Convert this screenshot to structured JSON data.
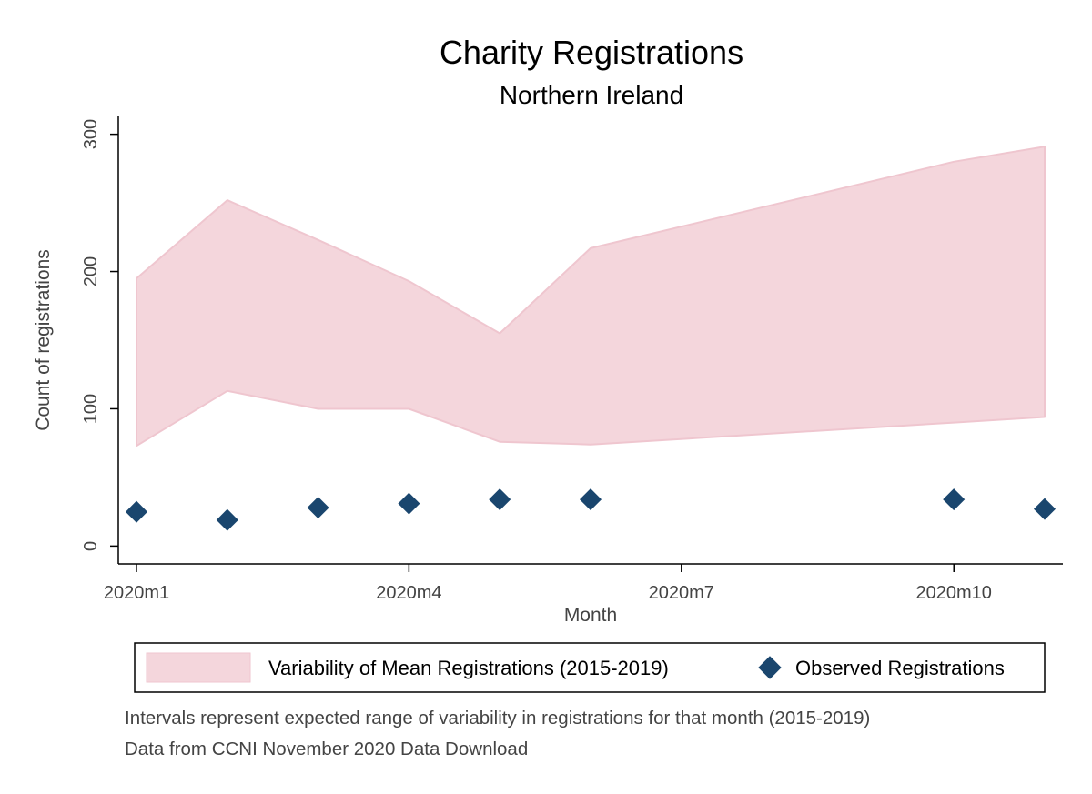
{
  "colors": {
    "band_fill": "#f4d6dc",
    "band_edge": "#efc6cf",
    "marker": "#1a466e",
    "axis": "#000000",
    "text": "#444444"
  },
  "chart_data": {
    "type": "area",
    "title": "Charity Registrations",
    "subtitle": "Northern Ireland",
    "xlabel": "Month",
    "ylabel": "Count of registrations",
    "x_ticks": [
      {
        "month": 1,
        "label": "2020m1"
      },
      {
        "month": 4,
        "label": "2020m4"
      },
      {
        "month": 7,
        "label": "2020m7"
      },
      {
        "month": 10,
        "label": "2020m10"
      }
    ],
    "y_ticks": [
      0,
      100,
      200,
      300
    ],
    "xlim": [
      0.8,
      11.2
    ],
    "ylim": [
      -13,
      313
    ],
    "grid": false,
    "legend_position": "bottom",
    "band": {
      "name": "Variability of Mean Registrations (2015-2019)",
      "points": [
        {
          "month": 1,
          "lower": 73,
          "upper": 195
        },
        {
          "month": 2,
          "lower": 113,
          "upper": 252
        },
        {
          "month": 3,
          "lower": 100,
          "upper": 223
        },
        {
          "month": 4,
          "lower": 100,
          "upper": 193
        },
        {
          "month": 5,
          "lower": 76,
          "upper": 155
        },
        {
          "month": 6,
          "lower": 74,
          "upper": 217
        },
        {
          "month": 10,
          "lower": 90,
          "upper": 280
        },
        {
          "month": 11,
          "lower": 94,
          "upper": 291
        }
      ]
    },
    "series": [
      {
        "name": "Observed Registrations",
        "marker": "diamond",
        "points": [
          {
            "month": 1,
            "value": 25
          },
          {
            "month": 2,
            "value": 19
          },
          {
            "month": 3,
            "value": 28
          },
          {
            "month": 4,
            "value": 31
          },
          {
            "month": 5,
            "value": 34
          },
          {
            "month": 6,
            "value": 34
          },
          {
            "month": 10,
            "value": 34
          },
          {
            "month": 11,
            "value": 27
          }
        ]
      }
    ],
    "notes": [
      "Intervals represent expected range of variability in registrations for that month (2015-2019)",
      "Data from CCNI November 2020 Data Download"
    ]
  }
}
